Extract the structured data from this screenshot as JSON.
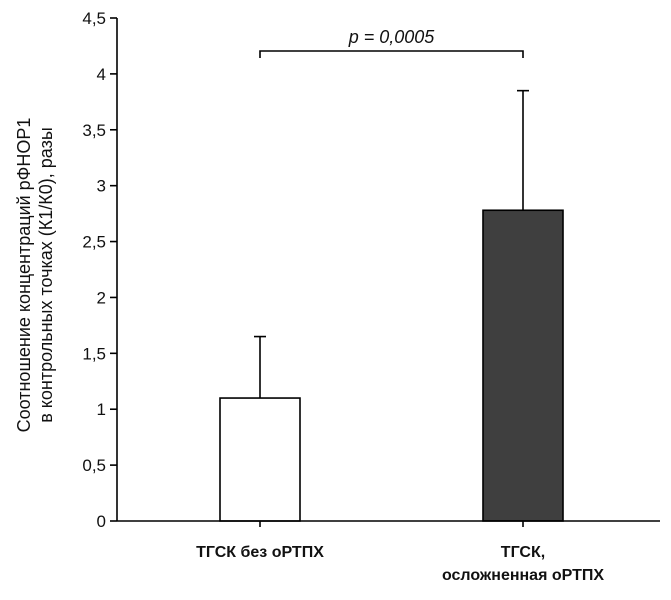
{
  "chart_data": {
    "type": "bar",
    "categories": [
      [
        "ТГСК без оРТПХ"
      ],
      [
        "ТГСК,",
        "осложненная оРТПХ"
      ]
    ],
    "values": [
      1.1,
      2.78
    ],
    "errors_upper": [
      0.55,
      1.07
    ],
    "bar_colors": [
      "#ffffff",
      "#3f3f3f"
    ],
    "ylabel": [
      "Соотношение концентраций рФНОР1",
      "в контрольных точках (К1/К0), разы"
    ],
    "ylim": [
      0,
      4.5
    ],
    "yticks": [
      0,
      0.5,
      1,
      1.5,
      2,
      2.5,
      3,
      3.5,
      4,
      4.5
    ],
    "ytick_labels": [
      "0",
      "0,5",
      "1",
      "1,5",
      "2",
      "2,5",
      "3",
      "3,5",
      "4",
      "4,5"
    ],
    "annotation": "p = 0,0005",
    "grid": false
  }
}
